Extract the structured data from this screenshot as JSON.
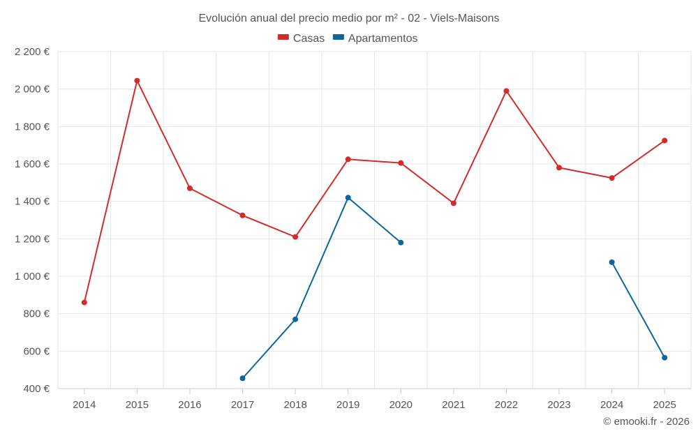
{
  "chart_data": {
    "type": "line",
    "title": "Evolución anual del precio medio por m² - 02 - Viels-Maisons",
    "categories": [
      "2014",
      "2015",
      "2016",
      "2017",
      "2018",
      "2019",
      "2020",
      "2021",
      "2022",
      "2023",
      "2024",
      "2025"
    ],
    "y_ticks": [
      400,
      600,
      800,
      1000,
      1200,
      1400,
      1600,
      1800,
      2000,
      2200
    ],
    "y_tick_labels": [
      "400 €",
      "600 €",
      "800 €",
      "1 000 €",
      "1 200 €",
      "1 400 €",
      "1 600 €",
      "1 800 €",
      "2 000 €",
      "2 200 €"
    ],
    "ylim": [
      400,
      2200
    ],
    "xlabel": "",
    "ylabel": "",
    "grid": true,
    "legend_position": "top-center",
    "series": [
      {
        "name": "Casas",
        "color": "#d32b2b",
        "values": [
          860,
          2045,
          1470,
          1325,
          1210,
          1625,
          1605,
          1390,
          1990,
          1580,
          1525,
          1725
        ]
      },
      {
        "name": "Apartamentos",
        "color": "#0b6699",
        "values": [
          null,
          null,
          null,
          455,
          770,
          1420,
          1180,
          null,
          null,
          null,
          1075,
          565
        ]
      }
    ]
  },
  "credit": "© emooki.fr - 2026"
}
